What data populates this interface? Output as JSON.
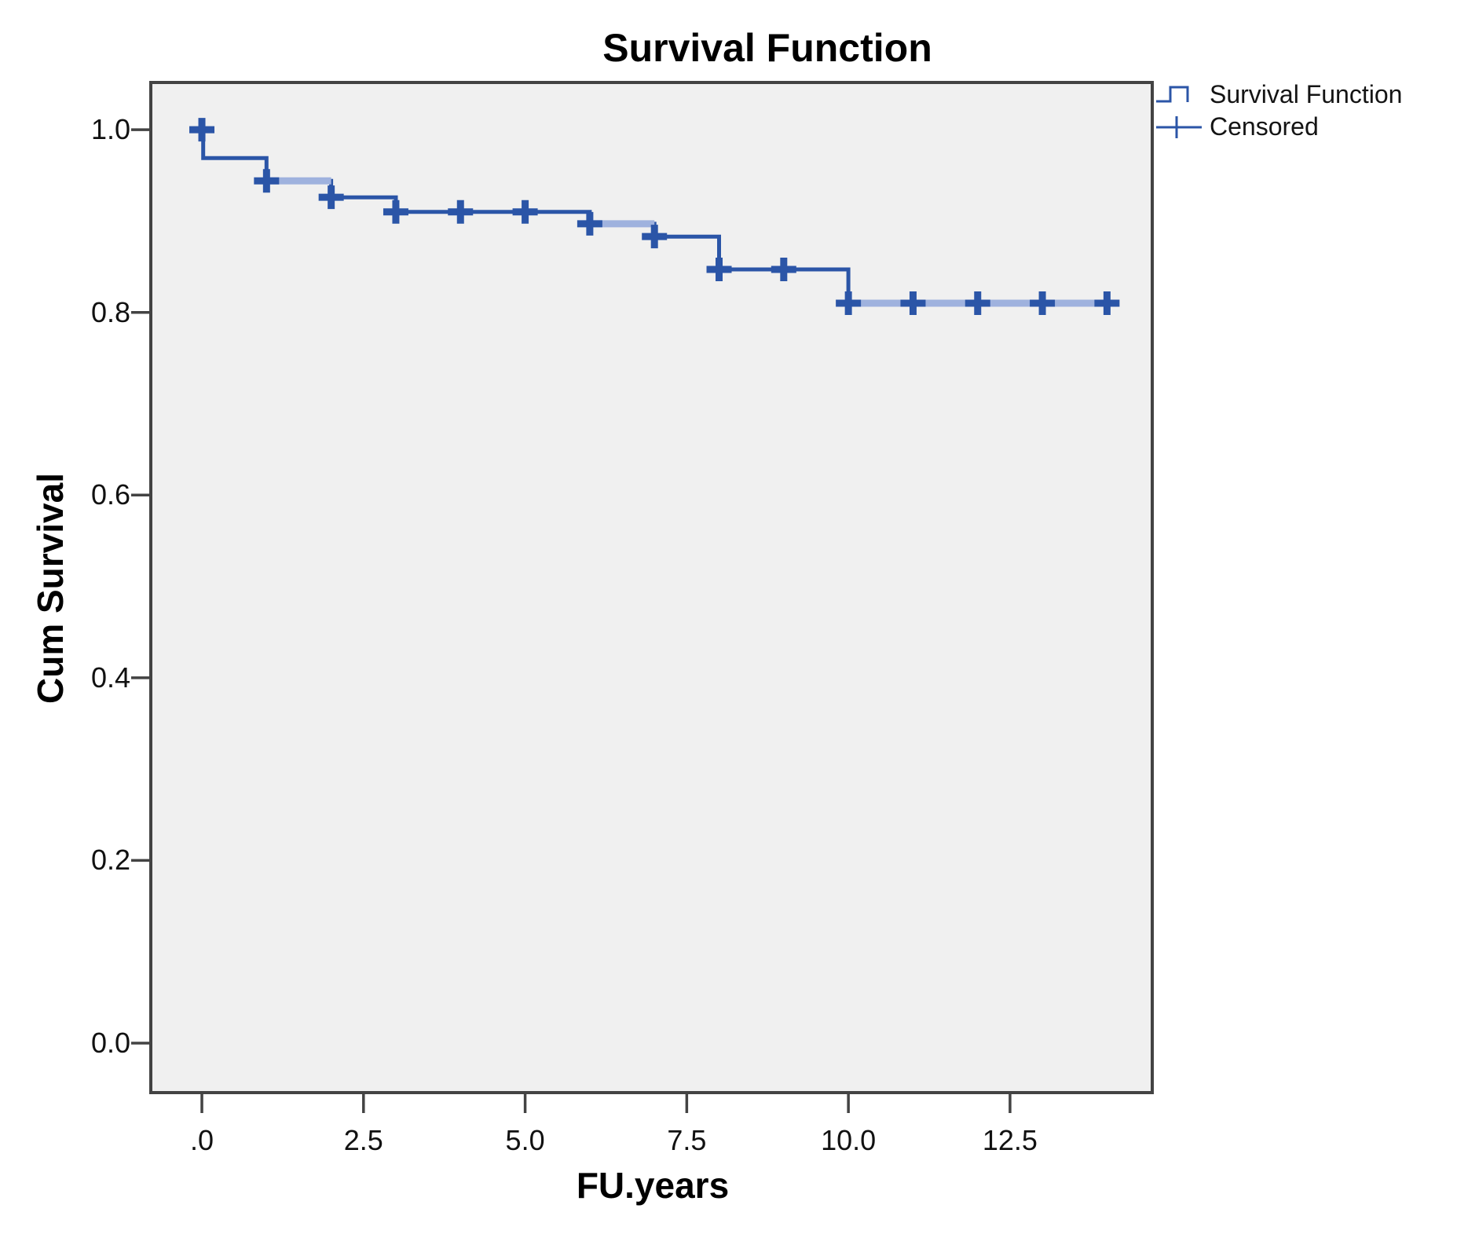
{
  "chart_data": {
    "type": "line",
    "subtype": "kaplan_meier_step",
    "title": "Survival Function",
    "xlabel": "FU.years",
    "ylabel": "Cum Survival",
    "xlim": [
      -0.79,
      14.7
    ],
    "ylim": [
      -0.0542,
      1.0517
    ],
    "grid": false,
    "x_ticks": [
      {
        "label": ".0",
        "value": 0
      },
      {
        "label": "2.5",
        "value": 2.5
      },
      {
        "label": "5.0",
        "value": 5
      },
      {
        "label": "7.5",
        "value": 7.5
      },
      {
        "label": "10.0",
        "value": 10
      },
      {
        "label": "12.5",
        "value": 12.5
      }
    ],
    "y_ticks": [
      {
        "label": "1.0",
        "value": 1.0
      },
      {
        "label": "0.8",
        "value": 0.8
      },
      {
        "label": "0.6",
        "value": 0.6
      },
      {
        "label": "0.4",
        "value": 0.4
      },
      {
        "label": "0.2",
        "value": 0.2
      },
      {
        "label": "0.0",
        "value": 0.0
      }
    ],
    "legend": {
      "position": "top-right-outside",
      "entries": [
        {
          "label": "Survival Function",
          "symbol": "step-line"
        },
        {
          "label": "Censored",
          "symbol": "plus"
        }
      ]
    },
    "series": [
      {
        "name": "Survival Function",
        "type": "step",
        "color": "#2b55a7",
        "step_points": [
          [
            0,
            1.0
          ],
          [
            0.02,
            1.0
          ],
          [
            0.02,
            0.969
          ],
          [
            1,
            0.969
          ],
          [
            1,
            0.944
          ],
          [
            2,
            0.944
          ],
          [
            2,
            0.926
          ],
          [
            3,
            0.926
          ],
          [
            3,
            0.91
          ],
          [
            6,
            0.91
          ],
          [
            6,
            0.897
          ],
          [
            7,
            0.897
          ],
          [
            7,
            0.883
          ],
          [
            8,
            0.883
          ],
          [
            8,
            0.847
          ],
          [
            10,
            0.847
          ],
          [
            10,
            0.81
          ],
          [
            14.15,
            0.81
          ]
        ]
      },
      {
        "name": "Censored",
        "type": "marker",
        "marker": "plus",
        "color": "#2b55a7",
        "light_color": "#9fb2de",
        "points": [
          [
            0,
            1.0
          ],
          [
            1,
            0.944
          ],
          [
            2,
            0.926
          ],
          [
            3,
            0.91
          ],
          [
            4,
            0.91
          ],
          [
            5,
            0.91
          ],
          [
            6,
            0.897
          ],
          [
            7,
            0.883
          ],
          [
            8,
            0.847
          ],
          [
            9,
            0.847
          ],
          [
            10,
            0.81
          ],
          [
            11,
            0.81
          ],
          [
            12,
            0.81
          ],
          [
            13,
            0.81
          ],
          [
            14,
            0.81
          ]
        ],
        "light_segments": [
          [
            1,
            2,
            0.944
          ],
          [
            6,
            7,
            0.897
          ],
          [
            10,
            14.15,
            0.81
          ]
        ]
      }
    ]
  },
  "colors": {
    "line": "#2b55a7",
    "censored_light": "#9fb2de",
    "plot_background": "#f0f0f0",
    "axis": "#434343",
    "text": "#000000"
  }
}
